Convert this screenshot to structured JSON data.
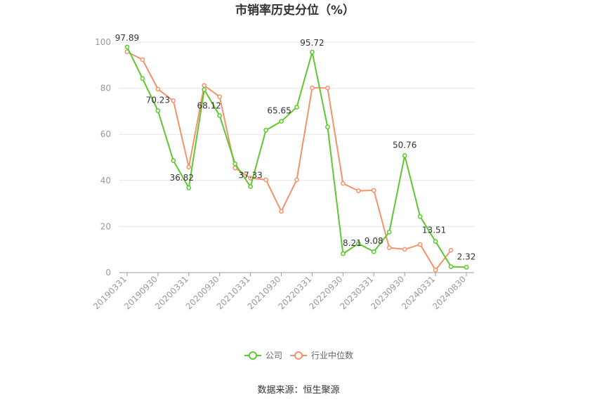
{
  "chart_data": {
    "type": "line",
    "title": "市销率历史分位（%）",
    "source": "数据来源：恒生聚源",
    "ylim": [
      0,
      100
    ],
    "yticks": [
      0,
      20,
      40,
      60,
      80,
      100
    ],
    "x": [
      "20190331",
      "20190630",
      "20190930",
      "20191231",
      "20200331",
      "20200630",
      "20200930",
      "20201231",
      "20210331",
      "20210630",
      "20210930",
      "20211231",
      "20220331",
      "20220630",
      "20220930",
      "20221231",
      "20230331",
      "20230630",
      "20230930",
      "20231231",
      "20240331",
      "20240630",
      "20240830"
    ],
    "xtick_labels": [
      "20190331",
      "20190930",
      "20200331",
      "20200930",
      "20210331",
      "20210930",
      "20220331",
      "20220930",
      "20230331",
      "20230930",
      "20240331",
      "20240830"
    ],
    "legend_position": "bottom",
    "grid": true,
    "series": [
      {
        "name": "公司",
        "color": "#5cc92e",
        "values": [
          97.89,
          84.2,
          70.23,
          48.6,
          36.82,
          79.4,
          68.12,
          47.2,
          37.33,
          61.8,
          65.65,
          71.8,
          95.72,
          63.2,
          8.21,
          12.6,
          9.08,
          17.6,
          50.76,
          24.3,
          13.51,
          2.6,
          2.32
        ],
        "labels": [
          "97.89",
          "",
          "70.23",
          "",
          "36.82",
          "",
          "68.12",
          "",
          "37.33",
          "",
          "65.65",
          "",
          "95.72",
          "",
          "8.21",
          "",
          "9.08",
          "",
          "50.76",
          "",
          "13.51",
          "",
          "2.32"
        ]
      },
      {
        "name": "行业中位数",
        "color": "#f5926a",
        "values": [
          95.8,
          92.4,
          79.6,
          74.6,
          45.8,
          81.2,
          76.3,
          45.4,
          41.0,
          40.3,
          26.6,
          40.3,
          80.2,
          80.1,
          38.7,
          35.5,
          35.7,
          10.8,
          10.1,
          12.2,
          1.1,
          9.7,
          null
        ],
        "labels": []
      }
    ]
  }
}
